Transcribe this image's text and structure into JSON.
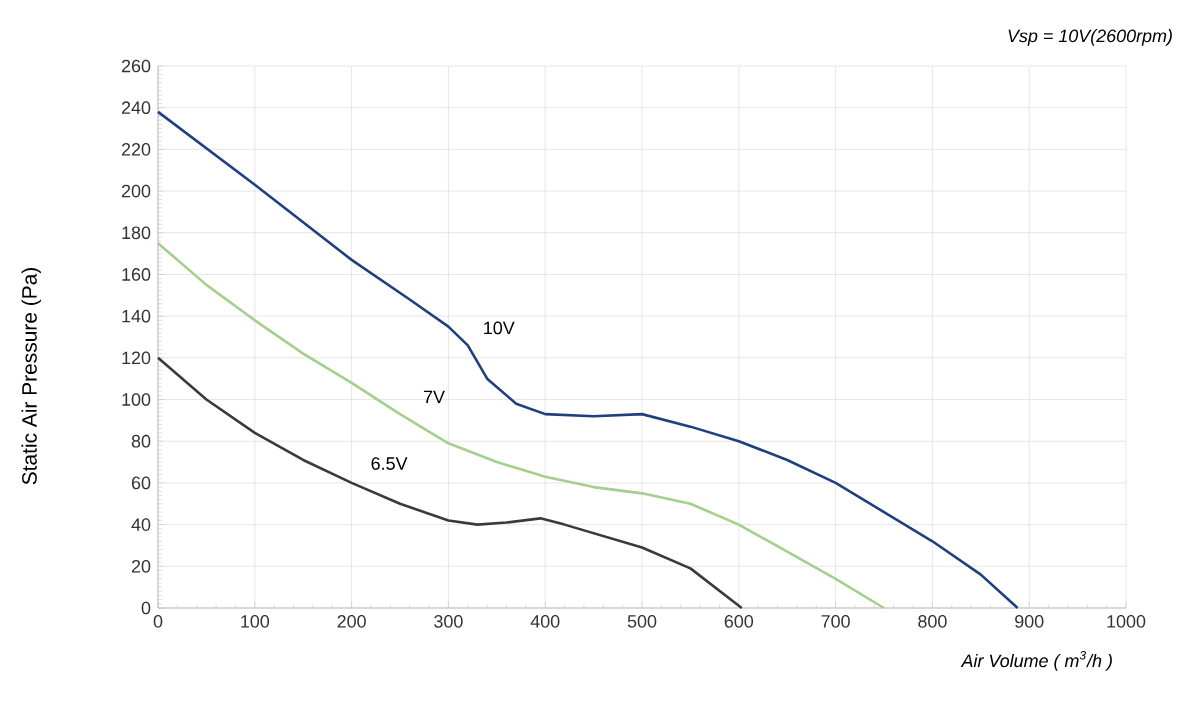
{
  "chart_data": {
    "type": "line",
    "title": "Vsp = 10V(2600rpm)",
    "xlabel": "Air Volume ( m$^{3}$/h )",
    "ylabel": "Static Air Pressure  (Pa)",
    "xlim": [
      0,
      1000
    ],
    "ylim": [
      0,
      260
    ],
    "xticks": [
      0,
      100,
      200,
      300,
      400,
      500,
      600,
      700,
      800,
      900,
      1000
    ],
    "yticks": [
      0,
      20,
      40,
      60,
      80,
      100,
      120,
      140,
      160,
      180,
      200,
      220,
      240,
      260
    ],
    "grid": true,
    "marker": "none",
    "line_style": "solid",
    "series": [
      {
        "name": "10V",
        "color": "#1f3f7f",
        "x": [
          0,
          100,
          200,
          260,
          300,
          320,
          340,
          370,
          400,
          450,
          500,
          550,
          600,
          650,
          700,
          750,
          800,
          850,
          888
        ],
        "values": [
          238,
          203,
          167,
          148,
          135,
          126,
          110,
          98,
          93,
          92,
          93,
          87,
          80,
          71,
          60,
          46,
          32,
          16,
          0
        ]
      },
      {
        "name": "7V",
        "color": "#a5cf8c",
        "x": [
          0,
          50,
          100,
          150,
          200,
          250,
          300,
          350,
          400,
          450,
          500,
          550,
          600,
          650,
          700,
          750
        ],
        "values": [
          175,
          155,
          138,
          122,
          108,
          93,
          79,
          70,
          63,
          58,
          55,
          50,
          40,
          27,
          14,
          0
        ]
      },
      {
        "name": "6.5V",
        "color": "#3a3a3a",
        "x": [
          0,
          50,
          100,
          150,
          200,
          250,
          300,
          330,
          360,
          395,
          420,
          500,
          550,
          603
        ],
        "values": [
          120,
          100,
          84,
          71,
          60,
          50,
          42,
          40,
          41,
          43,
          40,
          29,
          19,
          0
        ]
      }
    ]
  }
}
